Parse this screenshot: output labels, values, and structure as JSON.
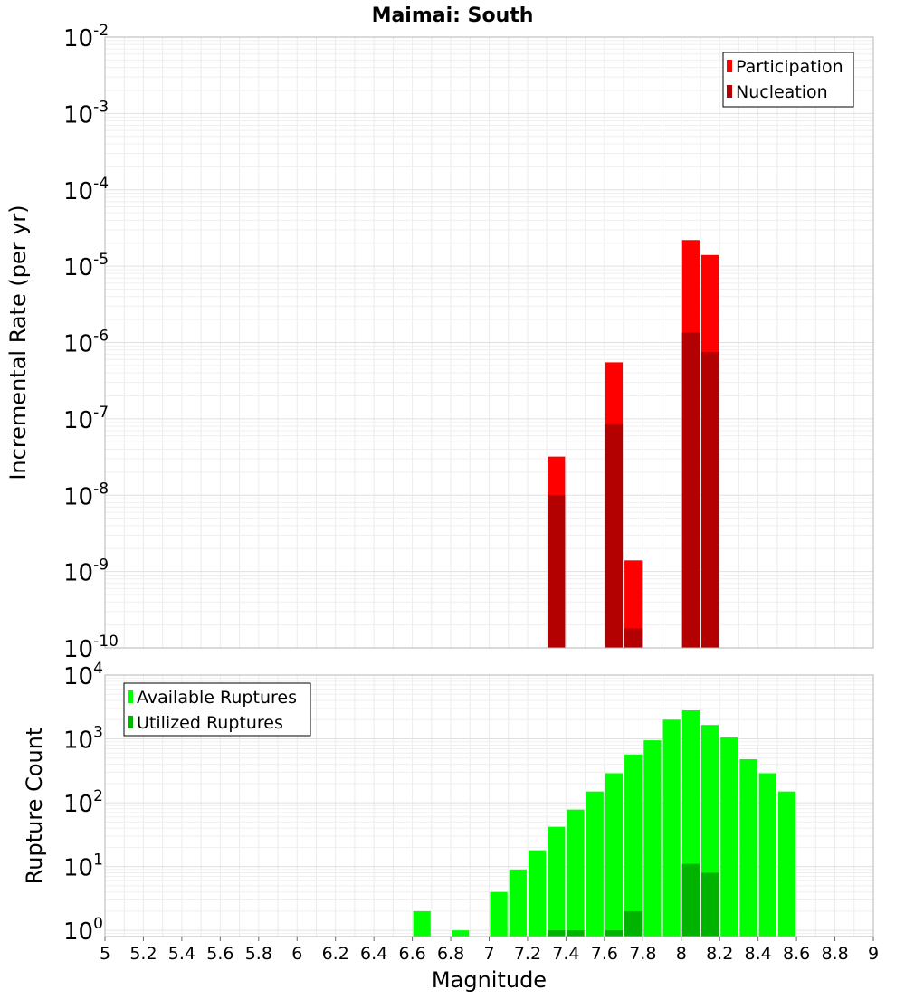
{
  "title": "Maimai: South",
  "chart_data": [
    {
      "type": "bar",
      "panel": "top",
      "ylabel": "Incremental Rate (per yr)",
      "yscale": "log",
      "ylim": [
        1e-10,
        0.01
      ],
      "xlim": [
        5,
        9
      ],
      "bin_width": 0.1,
      "legend_placement": "top-right",
      "grid": true,
      "y_ticks": [
        {
          "base": "10",
          "exp": "-10",
          "value": 1e-10
        },
        {
          "base": "10",
          "exp": "-9",
          "value": 1e-09
        },
        {
          "base": "10",
          "exp": "-8",
          "value": 1e-08
        },
        {
          "base": "10",
          "exp": "-7",
          "value": 1e-07
        },
        {
          "base": "10",
          "exp": "-6",
          "value": 1e-06
        },
        {
          "base": "10",
          "exp": "-5",
          "value": 1e-05
        },
        {
          "base": "10",
          "exp": "-4",
          "value": 0.0001
        },
        {
          "base": "10",
          "exp": "-3",
          "value": 0.001
        },
        {
          "base": "10",
          "exp": "-2",
          "value": 0.01
        }
      ],
      "series": [
        {
          "name": "Participation",
          "color": "#ff0000",
          "x": [
            7.35,
            7.65,
            7.75,
            8.05,
            8.15
          ],
          "values": [
            3.2e-08,
            5.5e-07,
            1.4e-09,
            2.2e-05,
            1.4e-05
          ]
        },
        {
          "name": "Nucleation",
          "color": "#b30000",
          "x": [
            7.35,
            7.65,
            7.75,
            8.05,
            8.15
          ],
          "values": [
            1e-08,
            8.5e-08,
            1.8e-10,
            1.35e-06,
            7.5e-07
          ]
        }
      ]
    },
    {
      "type": "bar",
      "panel": "bottom",
      "ylabel": "Rupture Count",
      "xlabel": "Magnitude",
      "yscale": "log",
      "ylim": [
        0.8,
        10000
      ],
      "xlim": [
        5,
        9
      ],
      "bin_width": 0.1,
      "legend_placement": "top-left",
      "grid": true,
      "y_ticks": [
        {
          "base": "10",
          "exp": "0",
          "value": 1
        },
        {
          "base": "10",
          "exp": "1",
          "value": 10
        },
        {
          "base": "10",
          "exp": "2",
          "value": 100
        },
        {
          "base": "10",
          "exp": "3",
          "value": 1000
        },
        {
          "base": "10",
          "exp": "4",
          "value": 10000
        }
      ],
      "x_ticks": [
        "5",
        "5.2",
        "5.4",
        "5.6",
        "5.8",
        "6",
        "6.2",
        "6.4",
        "6.6",
        "6.8",
        "7",
        "7.2",
        "7.4",
        "7.6",
        "7.8",
        "8",
        "8.2",
        "8.4",
        "8.6",
        "8.8",
        "9"
      ],
      "series": [
        {
          "name": "Available Ruptures",
          "color": "#00ff00",
          "x": [
            6.65,
            6.85,
            7.05,
            7.15,
            7.25,
            7.35,
            7.45,
            7.55,
            7.65,
            7.75,
            7.85,
            7.95,
            8.05,
            8.15,
            8.25,
            8.35,
            8.45,
            8.55
          ],
          "values": [
            2,
            1,
            4,
            9,
            18,
            42,
            78,
            150,
            290,
            570,
            950,
            2000,
            2800,
            1650,
            1050,
            480,
            290,
            150
          ]
        },
        {
          "name": "Utilized Ruptures",
          "color": "#00b300",
          "x": [
            7.35,
            7.45,
            7.65,
            7.75,
            8.05,
            8.15
          ],
          "values": [
            1,
            1,
            1,
            2,
            11,
            8
          ]
        }
      ]
    }
  ]
}
